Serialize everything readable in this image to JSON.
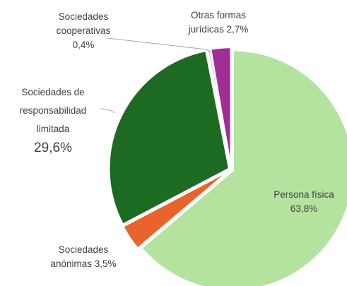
{
  "chart_data": {
    "type": "pie",
    "categories": [
      "Persona física",
      "Sociedades anónimas",
      "Sociedades de responsabilidad limitada",
      "Sociedades cooperativas",
      "Otras formas jurídicas"
    ],
    "values": [
      63.8,
      3.5,
      29.6,
      0.4,
      2.7
    ],
    "value_labels": [
      "63,8%",
      "3,5%",
      "29,6%",
      "0,4%",
      "2,7%"
    ],
    "colors": [
      "#b4e3a0",
      "#e8642c",
      "#1d6b23",
      "#c3cfe0",
      "#a12d96"
    ]
  }
}
